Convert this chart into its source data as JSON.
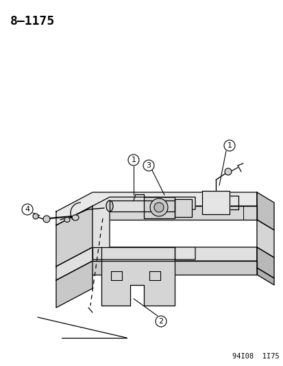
{
  "title": "8–1175",
  "footer": "94I08  1I75",
  "background_color": "#ffffff",
  "line_color": "#000000",
  "title_fontsize": 13,
  "footer_fontsize": 7.5
}
